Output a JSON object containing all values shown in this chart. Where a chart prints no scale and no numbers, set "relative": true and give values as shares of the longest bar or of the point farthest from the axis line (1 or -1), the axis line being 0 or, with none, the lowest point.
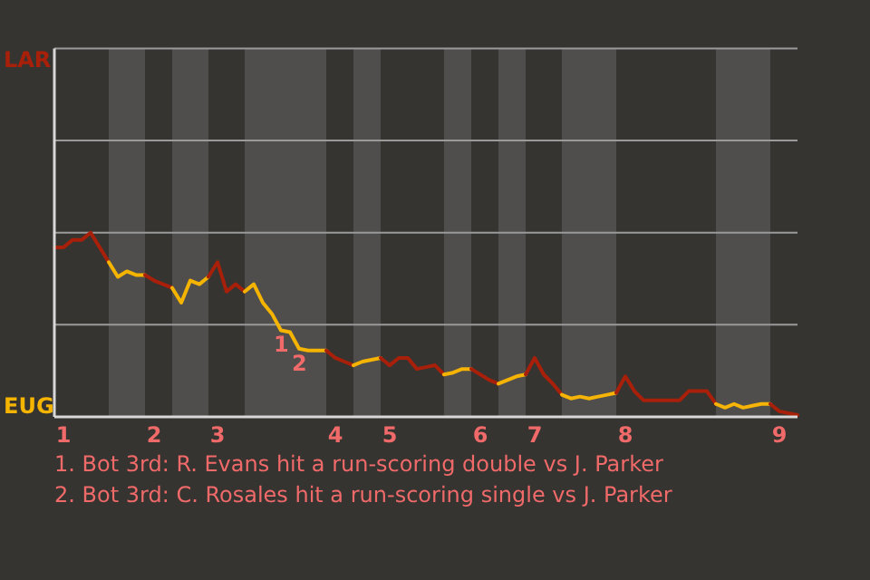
{
  "chart_data": {
    "type": "line",
    "relative": true,
    "categories": [
      null,
      "1",
      null,
      null,
      null,
      null,
      null,
      null,
      null,
      null,
      null,
      "2",
      null,
      null,
      null,
      null,
      null,
      null,
      "3",
      null,
      null,
      null,
      null,
      null,
      null,
      null,
      null,
      null,
      null,
      null,
      null,
      "4",
      null,
      null,
      null,
      null,
      null,
      "5",
      null,
      null,
      null,
      null,
      null,
      null,
      null,
      null,
      null,
      "6",
      null,
      null,
      null,
      null,
      null,
      "7",
      null,
      null,
      null,
      null,
      null,
      null,
      null,
      null,
      null,
      "8",
      null,
      null,
      null,
      null,
      null,
      null,
      null,
      null,
      null,
      null,
      null,
      null,
      null,
      null,
      null,
      null,
      "9",
      null,
      null
    ],
    "series": [
      {
        "color": "#a8200a",
        "values": [
          0.92,
          0.92,
          0.96,
          0.96,
          1,
          0.92,
          0.84,
          null,
          null,
          null,
          null,
          null,
          null,
          null,
          null,
          null,
          null,
          null,
          null,
          null,
          null,
          null,
          null,
          null,
          null,
          null,
          null,
          null,
          null,
          null,
          null,
          null,
          null,
          null,
          null,
          null,
          null,
          null,
          null,
          null,
          null,
          null,
          null,
          null,
          null,
          null,
          null,
          null,
          null,
          null,
          null,
          null,
          null,
          null,
          null,
          null,
          null,
          null,
          null,
          null,
          null,
          null,
          null,
          null,
          null,
          null,
          null,
          null,
          null,
          null,
          null,
          null,
          null,
          null,
          null,
          null,
          null,
          null,
          null,
          null,
          null,
          null,
          null
        ]
      },
      {
        "color": "#f5b400",
        "values": [
          null,
          null,
          null,
          null,
          null,
          null,
          0.84,
          0.76,
          0.79,
          0.77,
          0.77,
          null,
          null,
          null,
          null,
          null,
          null,
          null,
          null,
          null,
          null,
          null,
          null,
          null,
          null,
          null,
          null,
          null,
          null,
          null,
          null,
          null,
          null,
          null,
          null,
          null,
          null,
          null,
          null,
          null,
          null,
          null,
          null,
          null,
          null,
          null,
          null,
          null,
          null,
          null,
          null,
          null,
          null,
          null,
          null,
          null,
          null,
          null,
          null,
          null,
          null,
          null,
          null,
          null,
          null,
          null,
          null,
          null,
          null,
          null,
          null,
          null,
          null,
          null,
          null,
          null,
          null,
          null,
          null,
          null,
          null,
          null,
          null
        ]
      },
      {
        "color": "#a8200a",
        "values": [
          null,
          null,
          null,
          null,
          null,
          null,
          null,
          null,
          null,
          null,
          0.77,
          0.74,
          0.72,
          0.7,
          null,
          null,
          null,
          null,
          null,
          null,
          null,
          null,
          null,
          null,
          null,
          null,
          null,
          null,
          null,
          null,
          null,
          null,
          null,
          null,
          null,
          null,
          null,
          null,
          null,
          null,
          null,
          null,
          null,
          null,
          null,
          null,
          null,
          null,
          null,
          null,
          null,
          null,
          null,
          null,
          null,
          null,
          null,
          null,
          null,
          null,
          null,
          null,
          null,
          null,
          null,
          null,
          null,
          null,
          null,
          null,
          null,
          null,
          null,
          null,
          null,
          null,
          null,
          null,
          null,
          null,
          null,
          null,
          null
        ]
      },
      {
        "color": "#f5b401",
        "values": [
          null,
          null,
          null,
          null,
          null,
          null,
          null,
          null,
          null,
          null,
          null,
          null,
          null,
          0.7,
          0.62,
          0.74,
          0.72,
          0.76,
          null,
          null,
          null,
          null,
          null,
          null,
          null,
          null,
          null,
          null,
          null,
          null,
          null,
          null,
          null,
          null,
          null,
          null,
          null,
          null,
          null,
          null,
          null,
          null,
          null,
          null,
          null,
          null,
          null,
          null,
          null,
          null,
          null,
          null,
          null,
          null,
          null,
          null,
          null,
          null,
          null,
          null,
          null,
          null,
          null,
          null,
          null,
          null,
          null,
          null,
          null,
          null,
          null,
          null,
          null,
          null,
          null,
          null,
          null,
          null,
          null,
          null,
          null,
          null,
          null
        ]
      },
      {
        "color": "#a8200a",
        "values": [
          null,
          null,
          null,
          null,
          null,
          null,
          null,
          null,
          null,
          null,
          null,
          null,
          null,
          null,
          null,
          null,
          null,
          0.76,
          0.84,
          0.68,
          0.72,
          0.68,
          null,
          null,
          null,
          null,
          null,
          null,
          null,
          null,
          null,
          null,
          null,
          null,
          null,
          null,
          null,
          null,
          null,
          null,
          null,
          null,
          null,
          null,
          null,
          null,
          null,
          null,
          null,
          null,
          null,
          null,
          null,
          null,
          null,
          null,
          null,
          null,
          null,
          null,
          null,
          null,
          null,
          null,
          null,
          null,
          null,
          null,
          null,
          null,
          null,
          null,
          null,
          null,
          null,
          null,
          null,
          null,
          null,
          null,
          null,
          null,
          null
        ]
      },
      {
        "color": "#f5b402",
        "values": [
          null,
          null,
          null,
          null,
          null,
          null,
          null,
          null,
          null,
          null,
          null,
          null,
          null,
          null,
          null,
          null,
          null,
          null,
          null,
          null,
          null,
          0.68,
          0.72,
          0.62,
          0.56,
          0.47,
          0.46,
          0.37,
          0.36,
          0.36,
          0.36,
          null,
          null,
          null,
          null,
          null,
          null,
          null,
          null,
          null,
          null,
          null,
          null,
          null,
          null,
          null,
          null,
          null,
          null,
          null,
          null,
          null,
          null,
          null,
          null,
          null,
          null,
          null,
          null,
          null,
          null,
          null,
          null,
          null,
          null,
          null,
          null,
          null,
          null,
          null,
          null,
          null,
          null,
          null,
          null,
          null,
          null,
          null,
          null,
          null,
          null,
          null,
          null
        ]
      },
      {
        "color": "#a8200a",
        "values": [
          null,
          null,
          null,
          null,
          null,
          null,
          null,
          null,
          null,
          null,
          null,
          null,
          null,
          null,
          null,
          null,
          null,
          null,
          null,
          null,
          null,
          null,
          null,
          null,
          null,
          null,
          null,
          null,
          null,
          null,
          0.36,
          0.32,
          0.3,
          0.28,
          null,
          null,
          null,
          null,
          null,
          null,
          null,
          null,
          null,
          null,
          null,
          null,
          null,
          null,
          null,
          null,
          null,
          null,
          null,
          null,
          null,
          null,
          null,
          null,
          null,
          null,
          null,
          null,
          null,
          null,
          null,
          null,
          null,
          null,
          null,
          null,
          null,
          null,
          null,
          null,
          null,
          null,
          null,
          null,
          null,
          null,
          null,
          null,
          null
        ]
      },
      {
        "color": "#f5b403",
        "values": [
          null,
          null,
          null,
          null,
          null,
          null,
          null,
          null,
          null,
          null,
          null,
          null,
          null,
          null,
          null,
          null,
          null,
          null,
          null,
          null,
          null,
          null,
          null,
          null,
          null,
          null,
          null,
          null,
          null,
          null,
          null,
          null,
          null,
          0.28,
          0.3,
          0.31,
          0.32,
          null,
          null,
          null,
          null,
          null,
          null,
          null,
          null,
          null,
          null,
          null,
          null,
          null,
          null,
          null,
          null,
          null,
          null,
          null,
          null,
          null,
          null,
          null,
          null,
          null,
          null,
          null,
          null,
          null,
          null,
          null,
          null,
          null,
          null,
          null,
          null,
          null,
          null,
          null,
          null,
          null,
          null,
          null,
          null,
          null,
          null
        ]
      },
      {
        "color": "#a8200a",
        "values": [
          null,
          null,
          null,
          null,
          null,
          null,
          null,
          null,
          null,
          null,
          null,
          null,
          null,
          null,
          null,
          null,
          null,
          null,
          null,
          null,
          null,
          null,
          null,
          null,
          null,
          null,
          null,
          null,
          null,
          null,
          null,
          null,
          null,
          null,
          null,
          null,
          0.32,
          0.28,
          0.32,
          0.32,
          0.26,
          0.27,
          0.28,
          0.23,
          null,
          null,
          null,
          null,
          null,
          null,
          null,
          null,
          null,
          null,
          null,
          null,
          null,
          null,
          null,
          null,
          null,
          null,
          null,
          null,
          null,
          null,
          null,
          null,
          null,
          null,
          null,
          null,
          null,
          null,
          null,
          null,
          null,
          null,
          null,
          null,
          null,
          null,
          null
        ]
      },
      {
        "color": "#f5b404",
        "values": [
          null,
          null,
          null,
          null,
          null,
          null,
          null,
          null,
          null,
          null,
          null,
          null,
          null,
          null,
          null,
          null,
          null,
          null,
          null,
          null,
          null,
          null,
          null,
          null,
          null,
          null,
          null,
          null,
          null,
          null,
          null,
          null,
          null,
          null,
          null,
          null,
          null,
          null,
          null,
          null,
          null,
          null,
          null,
          0.23,
          0.24,
          0.26,
          0.26,
          null,
          null,
          null,
          null,
          null,
          null,
          null,
          null,
          null,
          null,
          null,
          null,
          null,
          null,
          null,
          null,
          null,
          null,
          null,
          null,
          null,
          null,
          null,
          null,
          null,
          null,
          null,
          null,
          null,
          null,
          null,
          null,
          null,
          null,
          null,
          null
        ]
      },
      {
        "color": "#a8200a",
        "values": [
          null,
          null,
          null,
          null,
          null,
          null,
          null,
          null,
          null,
          null,
          null,
          null,
          null,
          null,
          null,
          null,
          null,
          null,
          null,
          null,
          null,
          null,
          null,
          null,
          null,
          null,
          null,
          null,
          null,
          null,
          null,
          null,
          null,
          null,
          null,
          null,
          null,
          null,
          null,
          null,
          null,
          null,
          null,
          null,
          null,
          null,
          0.26,
          0.23,
          0.2,
          0.18,
          null,
          null,
          null,
          null,
          null,
          null,
          null,
          null,
          null,
          null,
          null,
          null,
          null,
          null,
          null,
          null,
          null,
          null,
          null,
          null,
          null,
          null,
          null,
          null,
          null,
          null,
          null,
          null,
          null,
          null,
          null,
          null,
          null
        ]
      },
      {
        "color": "#f5b405",
        "values": [
          null,
          null,
          null,
          null,
          null,
          null,
          null,
          null,
          null,
          null,
          null,
          null,
          null,
          null,
          null,
          null,
          null,
          null,
          null,
          null,
          null,
          null,
          null,
          null,
          null,
          null,
          null,
          null,
          null,
          null,
          null,
          null,
          null,
          null,
          null,
          null,
          null,
          null,
          null,
          null,
          null,
          null,
          null,
          null,
          null,
          null,
          null,
          null,
          null,
          0.18,
          0.2,
          0.22,
          0.23,
          null,
          null,
          null,
          null,
          null,
          null,
          null,
          null,
          null,
          null,
          null,
          null,
          null,
          null,
          null,
          null,
          null,
          null,
          null,
          null,
          null,
          null,
          null,
          null,
          null,
          null,
          null,
          null,
          null,
          null
        ]
      },
      {
        "color": "#a8200a",
        "values": [
          null,
          null,
          null,
          null,
          null,
          null,
          null,
          null,
          null,
          null,
          null,
          null,
          null,
          null,
          null,
          null,
          null,
          null,
          null,
          null,
          null,
          null,
          null,
          null,
          null,
          null,
          null,
          null,
          null,
          null,
          null,
          null,
          null,
          null,
          null,
          null,
          null,
          null,
          null,
          null,
          null,
          null,
          null,
          null,
          null,
          null,
          null,
          null,
          null,
          null,
          null,
          null,
          0.23,
          0.32,
          0.23,
          0.18,
          0.12,
          null,
          null,
          null,
          null,
          null,
          null,
          null,
          null,
          null,
          null,
          null,
          null,
          null,
          null,
          null,
          null,
          null,
          null,
          null,
          null,
          null,
          null,
          null,
          null,
          null,
          null
        ]
      },
      {
        "color": "#f5b406",
        "values": [
          null,
          null,
          null,
          null,
          null,
          null,
          null,
          null,
          null,
          null,
          null,
          null,
          null,
          null,
          null,
          null,
          null,
          null,
          null,
          null,
          null,
          null,
          null,
          null,
          null,
          null,
          null,
          null,
          null,
          null,
          null,
          null,
          null,
          null,
          null,
          null,
          null,
          null,
          null,
          null,
          null,
          null,
          null,
          null,
          null,
          null,
          null,
          null,
          null,
          null,
          null,
          null,
          null,
          null,
          null,
          null,
          0.12,
          0.1,
          0.11,
          0.1,
          0.11,
          0.12,
          0.13,
          null,
          null,
          null,
          null,
          null,
          null,
          null,
          null,
          null,
          null,
          null,
          null,
          null,
          null,
          null,
          null,
          null,
          null,
          null,
          null
        ]
      },
      {
        "color": "#a8200a",
        "values": [
          null,
          null,
          null,
          null,
          null,
          null,
          null,
          null,
          null,
          null,
          null,
          null,
          null,
          null,
          null,
          null,
          null,
          null,
          null,
          null,
          null,
          null,
          null,
          null,
          null,
          null,
          null,
          null,
          null,
          null,
          null,
          null,
          null,
          null,
          null,
          null,
          null,
          null,
          null,
          null,
          null,
          null,
          null,
          null,
          null,
          null,
          null,
          null,
          null,
          null,
          null,
          null,
          null,
          null,
          null,
          null,
          null,
          null,
          null,
          null,
          null,
          null,
          0.13,
          0.22,
          0.14,
          0.09,
          0.09,
          0.09,
          0.09,
          0.09,
          0.14,
          0.14,
          0.14,
          0.07,
          null,
          null,
          null,
          null,
          null,
          null,
          null,
          null,
          null
        ]
      },
      {
        "color": "#f5b407",
        "values": [
          null,
          null,
          null,
          null,
          null,
          null,
          null,
          null,
          null,
          null,
          null,
          null,
          null,
          null,
          null,
          null,
          null,
          null,
          null,
          null,
          null,
          null,
          null,
          null,
          null,
          null,
          null,
          null,
          null,
          null,
          null,
          null,
          null,
          null,
          null,
          null,
          null,
          null,
          null,
          null,
          null,
          null,
          null,
          null,
          null,
          null,
          null,
          null,
          null,
          null,
          null,
          null,
          null,
          null,
          null,
          null,
          null,
          null,
          null,
          null,
          null,
          null,
          null,
          null,
          null,
          null,
          null,
          null,
          null,
          null,
          null,
          null,
          null,
          0.07,
          0.05,
          0.07,
          0.05,
          0.06,
          0.07,
          0.07,
          null,
          null,
          null
        ]
      },
      {
        "color": "#a8200a",
        "values": [
          null,
          null,
          null,
          null,
          null,
          null,
          null,
          null,
          null,
          null,
          null,
          null,
          null,
          null,
          null,
          null,
          null,
          null,
          null,
          null,
          null,
          null,
          null,
          null,
          null,
          null,
          null,
          null,
          null,
          null,
          null,
          null,
          null,
          null,
          null,
          null,
          null,
          null,
          null,
          null,
          null,
          null,
          null,
          null,
          null,
          null,
          null,
          null,
          null,
          null,
          null,
          null,
          null,
          null,
          null,
          null,
          null,
          null,
          null,
          null,
          null,
          null,
          null,
          null,
          null,
          null,
          null,
          null,
          null,
          null,
          null,
          null,
          null,
          null,
          null,
          null,
          null,
          null,
          null,
          0.07,
          0.03,
          0.02,
          0.01
        ]
      }
    ],
    "ref_lines": [
      {
        "axis": "y",
        "value": 0.5,
        "color": "#9a9a9a"
      },
      {
        "axis": "y",
        "value": 1,
        "color": "#9a9a9a"
      },
      {
        "axis": "y",
        "value": 1.5,
        "color": "#9a9a9a"
      },
      {
        "axis": "y",
        "value": 2,
        "color": "#9a9a9a"
      }
    ],
    "annotations": [
      "LAR",
      "EUG",
      "1",
      "2",
      "1. Bot 3rd: R. Evans hit a run-scoring double vs J. Parker",
      "2. Bot 3rd: C. Rosales hit a run-scoring single vs J. Parker"
    ]
  }
}
